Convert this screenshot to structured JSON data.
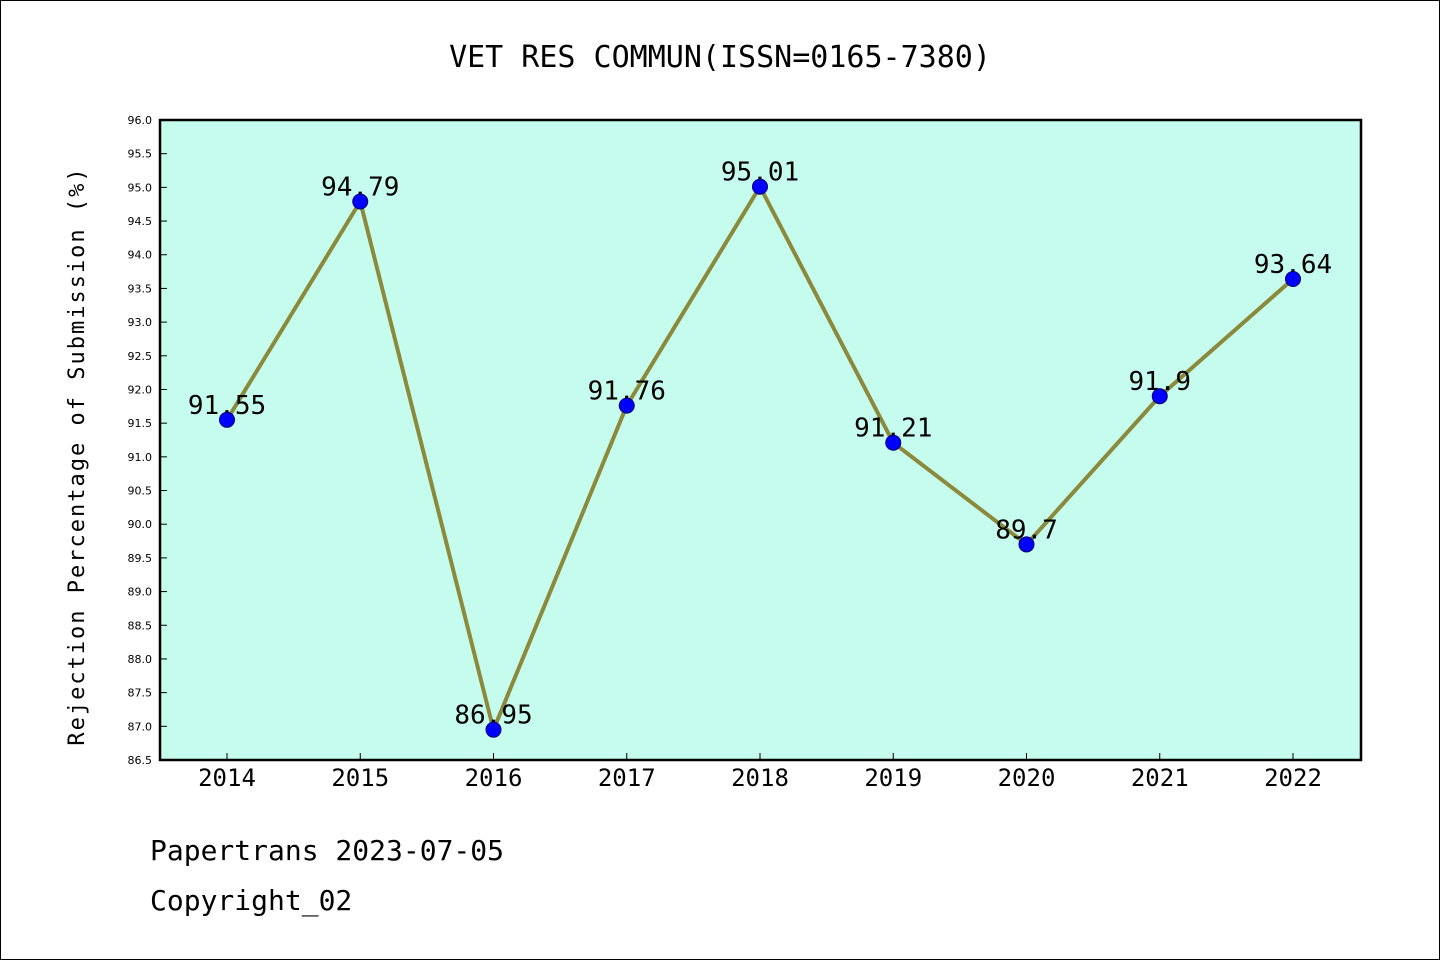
{
  "chart_data": {
    "type": "line",
    "title": "VET RES COMMUN(ISSN=0165-7380)",
    "ylabel": "Rejection Percentage of Submission (%)",
    "xlabel": "",
    "categories": [
      "2014",
      "2015",
      "2016",
      "2017",
      "2018",
      "2019",
      "2020",
      "2021",
      "2022"
    ],
    "values": [
      91.55,
      94.79,
      86.95,
      91.76,
      95.01,
      91.21,
      89.7,
      91.9,
      93.64
    ],
    "data_labels": [
      "91.55",
      "94.79",
      "86.95",
      "91.76",
      "95.01",
      "91.21",
      "89.7",
      "91.9",
      "93.64"
    ],
    "ylim": [
      86.5,
      96.0
    ],
    "ytick_step": 0.5,
    "grid": false,
    "legend": "none",
    "colors": {
      "plot_background": "#c6fcee",
      "line": "#8b8a3c",
      "marker": "#0000ff",
      "marker_edge": "#00006e",
      "axes": "#000000"
    }
  },
  "footer": {
    "line1": "Papertrans 2023-07-05",
    "line2": "Copyright_02"
  }
}
